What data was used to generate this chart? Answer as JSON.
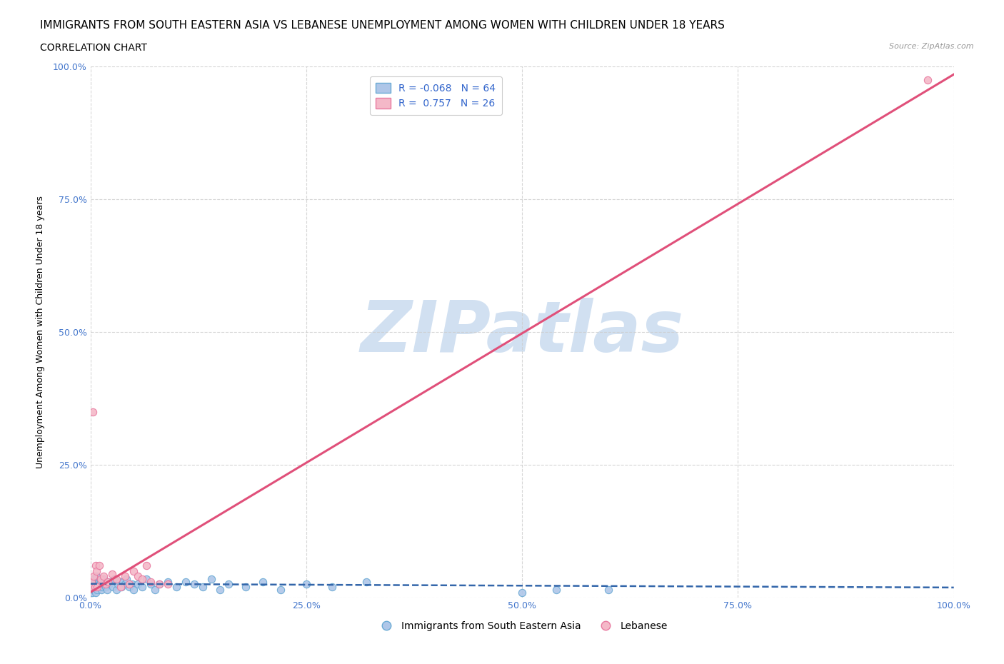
{
  "title": "IMMIGRANTS FROM SOUTH EASTERN ASIA VS LEBANESE UNEMPLOYMENT AMONG WOMEN WITH CHILDREN UNDER 18 YEARS",
  "subtitle": "CORRELATION CHART",
  "source": "Source: ZipAtlas.com",
  "ylabel": "Unemployment Among Women with Children Under 18 years",
  "xlim": [
    0,
    1
  ],
  "ylim": [
    0,
    1
  ],
  "xticks": [
    0,
    0.25,
    0.5,
    0.75,
    1.0
  ],
  "yticks": [
    0,
    0.25,
    0.5,
    0.75,
    1.0
  ],
  "xtick_labels": [
    "0.0%",
    "25.0%",
    "50.0%",
    "75.0%",
    "100.0%"
  ],
  "ytick_labels": [
    "0.0%",
    "25.0%",
    "50.0%",
    "75.0%",
    "100.0%"
  ],
  "blue_color": "#aec6e8",
  "pink_color": "#f4b8c8",
  "blue_edge": "#6aaad4",
  "pink_edge": "#e87aa0",
  "blue_trend_color": "#3366aa",
  "pink_trend_color": "#e0507a",
  "R_blue": -0.068,
  "N_blue": 64,
  "R_pink": 0.757,
  "N_pink": 26,
  "legend_labels": [
    "Immigrants from South Eastern Asia",
    "Lebanese"
  ],
  "watermark": "ZIPatlas",
  "watermark_color": "#ccddf0",
  "blue_scatter_x": [
    0.001,
    0.002,
    0.002,
    0.003,
    0.003,
    0.004,
    0.004,
    0.005,
    0.005,
    0.006,
    0.006,
    0.007,
    0.007,
    0.008,
    0.009,
    0.01,
    0.01,
    0.011,
    0.012,
    0.013,
    0.014,
    0.015,
    0.016,
    0.017,
    0.018,
    0.019,
    0.02,
    0.022,
    0.024,
    0.026,
    0.028,
    0.03,
    0.032,
    0.034,
    0.036,
    0.038,
    0.04,
    0.042,
    0.045,
    0.048,
    0.05,
    0.055,
    0.06,
    0.065,
    0.07,
    0.075,
    0.08,
    0.09,
    0.1,
    0.11,
    0.12,
    0.13,
    0.14,
    0.15,
    0.16,
    0.18,
    0.2,
    0.22,
    0.25,
    0.28,
    0.32,
    0.5,
    0.54,
    0.6
  ],
  "blue_scatter_y": [
    0.015,
    0.025,
    0.01,
    0.02,
    0.03,
    0.015,
    0.035,
    0.02,
    0.03,
    0.01,
    0.025,
    0.02,
    0.04,
    0.015,
    0.025,
    0.02,
    0.03,
    0.025,
    0.03,
    0.015,
    0.02,
    0.035,
    0.025,
    0.03,
    0.02,
    0.015,
    0.03,
    0.025,
    0.03,
    0.02,
    0.035,
    0.015,
    0.025,
    0.03,
    0.02,
    0.03,
    0.025,
    0.035,
    0.02,
    0.025,
    0.015,
    0.025,
    0.02,
    0.035,
    0.025,
    0.015,
    0.025,
    0.03,
    0.02,
    0.03,
    0.025,
    0.02,
    0.035,
    0.015,
    0.025,
    0.02,
    0.03,
    0.015,
    0.025,
    0.02,
    0.03,
    0.01,
    0.015,
    0.015
  ],
  "pink_scatter_x": [
    0.001,
    0.002,
    0.003,
    0.004,
    0.005,
    0.006,
    0.007,
    0.008,
    0.01,
    0.012,
    0.015,
    0.018,
    0.02,
    0.025,
    0.03,
    0.035,
    0.04,
    0.045,
    0.05,
    0.055,
    0.06,
    0.065,
    0.07,
    0.08,
    0.09,
    0.97
  ],
  "pink_scatter_y": [
    0.03,
    0.02,
    0.35,
    0.04,
    0.02,
    0.06,
    0.05,
    0.02,
    0.06,
    0.035,
    0.04,
    0.025,
    0.03,
    0.045,
    0.035,
    0.02,
    0.04,
    0.025,
    0.05,
    0.04,
    0.035,
    0.06,
    0.03,
    0.025,
    0.025,
    0.975
  ],
  "blue_trend_x": [
    0.0,
    1.0
  ],
  "blue_trend_y": [
    0.026,
    0.019
  ],
  "pink_trend_x": [
    0.0,
    1.0
  ],
  "pink_trend_y": [
    0.01,
    0.985
  ],
  "title_fontsize": 11,
  "subtitle_fontsize": 10,
  "source_fontsize": 8,
  "axis_label_fontsize": 9,
  "tick_fontsize": 9,
  "legend_fontsize": 10,
  "tick_color": "#4477cc",
  "legend_text_color": "#3366cc",
  "watermark_zip_color": "#c8d8ee",
  "watermark_atlas_color": "#c8d8ee"
}
